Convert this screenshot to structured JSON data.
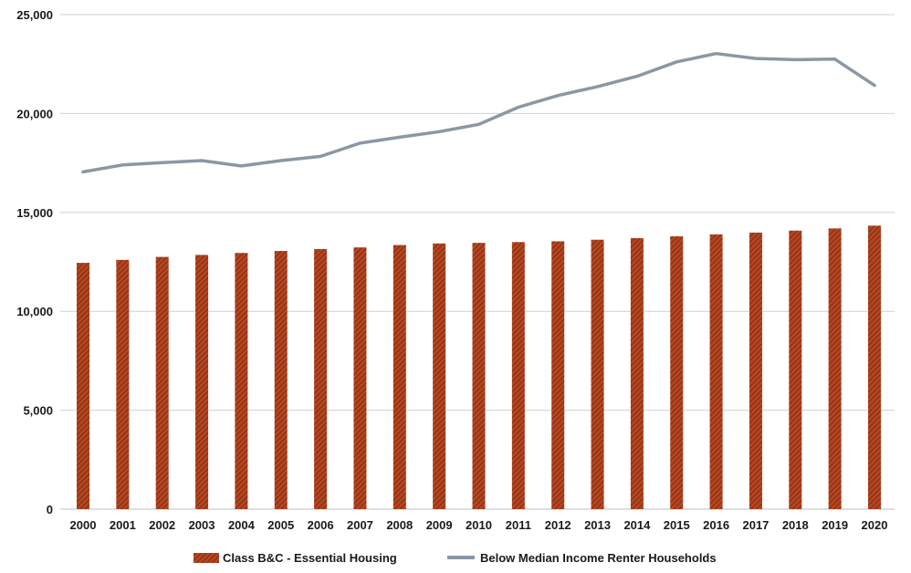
{
  "chart_data": {
    "type": "bar",
    "categories": [
      "2000",
      "2001",
      "2002",
      "2003",
      "2004",
      "2005",
      "2006",
      "2007",
      "2008",
      "2009",
      "2010",
      "2011",
      "2012",
      "2013",
      "2014",
      "2015",
      "2016",
      "2017",
      "2018",
      "2019",
      "2020"
    ],
    "series": [
      {
        "name": "Class B&C - Essential Housing",
        "type": "bar",
        "color": "#b5451f",
        "values": [
          12450,
          12600,
          12750,
          12850,
          12950,
          13050,
          13150,
          13230,
          13350,
          13430,
          13460,
          13500,
          13540,
          13620,
          13700,
          13790,
          13890,
          13980,
          14080,
          14190,
          14330
        ]
      },
      {
        "name": "Below Median Income Renter Households",
        "type": "line",
        "color": "#8b97a5",
        "values": [
          17050,
          17400,
          17520,
          17620,
          17350,
          17620,
          17830,
          18500,
          18800,
          19080,
          19450,
          20320,
          20910,
          21360,
          21880,
          22610,
          23030,
          22780,
          22720,
          22750,
          21420
        ]
      }
    ],
    "ylim": [
      0,
      25000
    ],
    "yticks": [
      0,
      5000,
      10000,
      15000,
      20000,
      25000
    ],
    "ytick_labels": [
      "0",
      "5,000",
      "10,000",
      "15,000",
      "20,000",
      "25,000"
    ],
    "grid": true,
    "legend_position": "bottom",
    "title": "",
    "xlabel": "",
    "ylabel": ""
  }
}
